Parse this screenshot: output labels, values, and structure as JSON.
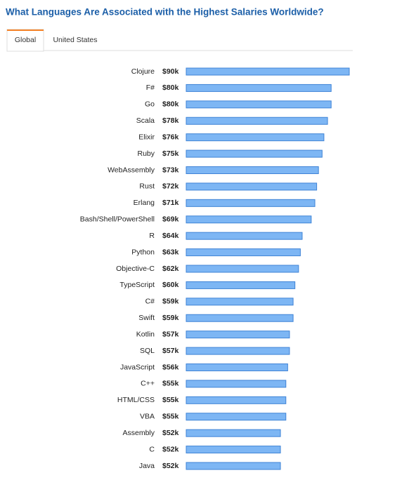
{
  "tabs": [
    "Global",
    "United States"
  ],
  "chart_data": {
    "type": "bar",
    "orientation": "horizontal",
    "title": "What Languages Are Associated with the Highest Salaries Worldwide?",
    "categories": [
      "Clojure",
      "F#",
      "Go",
      "Scala",
      "Elixir",
      "Ruby",
      "WebAssembly",
      "Rust",
      "Erlang",
      "Bash/Shell/PowerShell",
      "R",
      "Python",
      "Objective-C",
      "TypeScript",
      "C#",
      "Swift",
      "Kotlin",
      "SQL",
      "JavaScript",
      "C++",
      "HTML/CSS",
      "VBA",
      "Assembly",
      "C",
      "Java"
    ],
    "values": [
      90000,
      80000,
      80000,
      78000,
      76000,
      75000,
      73000,
      72000,
      71000,
      69000,
      64000,
      63000,
      62000,
      60000,
      59000,
      59000,
      57000,
      57000,
      56000,
      55000,
      55000,
      55000,
      52000,
      52000,
      52000
    ],
    "value_labels": [
      "$90k",
      "$80k",
      "$80k",
      "$78k",
      "$76k",
      "$75k",
      "$73k",
      "$72k",
      "$71k",
      "$69k",
      "$64k",
      "$63k",
      "$62k",
      "$60k",
      "$59k",
      "$59k",
      "$57k",
      "$57k",
      "$56k",
      "$55k",
      "$55k",
      "$55k",
      "$52k",
      "$52k",
      "$52k"
    ],
    "color": "#7db6f4"
  }
}
